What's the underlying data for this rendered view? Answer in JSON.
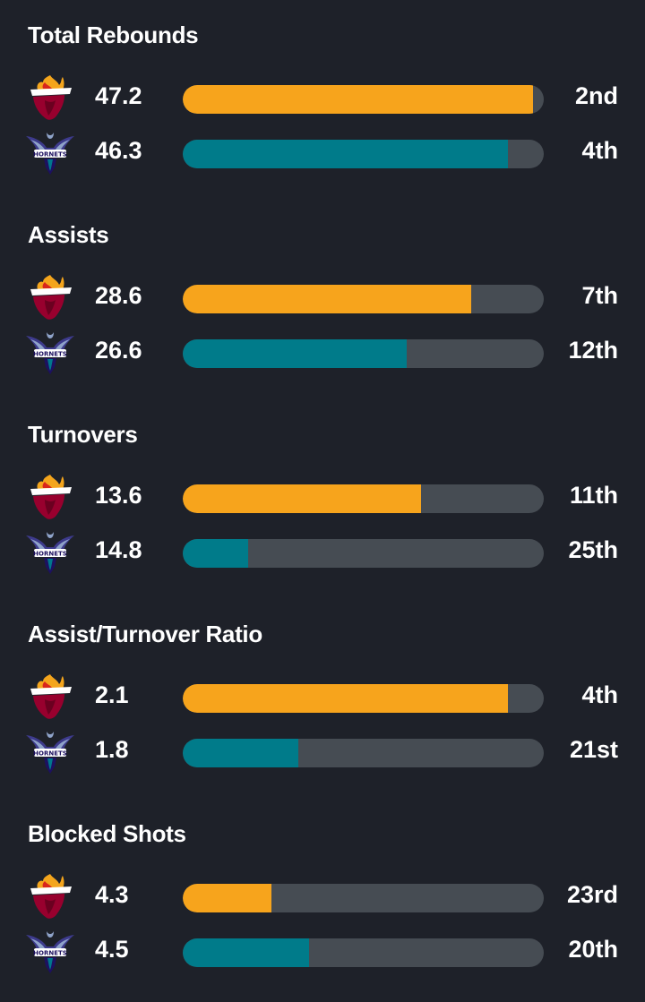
{
  "colors": {
    "background": "#1e2129",
    "track": "#464c53",
    "heat": "#f7a41c",
    "hornets": "#007b8a"
  },
  "teams": {
    "home_logo": "miami-heat-logo",
    "away_logo": "charlotte-hornets-logo",
    "away_logo_text": "HORNETS"
  },
  "stats": [
    {
      "title": "Total Rebounds",
      "home": {
        "value": "47.2",
        "rank": "2nd",
        "fill": 0.97
      },
      "away": {
        "value": "46.3",
        "rank": "4th",
        "fill": 0.9
      }
    },
    {
      "title": "Assists",
      "home": {
        "value": "28.6",
        "rank": "7th",
        "fill": 0.8
      },
      "away": {
        "value": "26.6",
        "rank": "12th",
        "fill": 0.62
      }
    },
    {
      "title": "Turnovers",
      "home": {
        "value": "13.6",
        "rank": "11th",
        "fill": 0.66
      },
      "away": {
        "value": "14.8",
        "rank": "25th",
        "fill": 0.18
      }
    },
    {
      "title": "Assist/Turnover Ratio",
      "home": {
        "value": "2.1",
        "rank": "4th",
        "fill": 0.9
      },
      "away": {
        "value": "1.8",
        "rank": "21st",
        "fill": 0.32
      }
    },
    {
      "title": "Blocked Shots",
      "home": {
        "value": "4.3",
        "rank": "23rd",
        "fill": 0.245
      },
      "away": {
        "value": "4.5",
        "rank": "20th",
        "fill": 0.35
      }
    }
  ]
}
